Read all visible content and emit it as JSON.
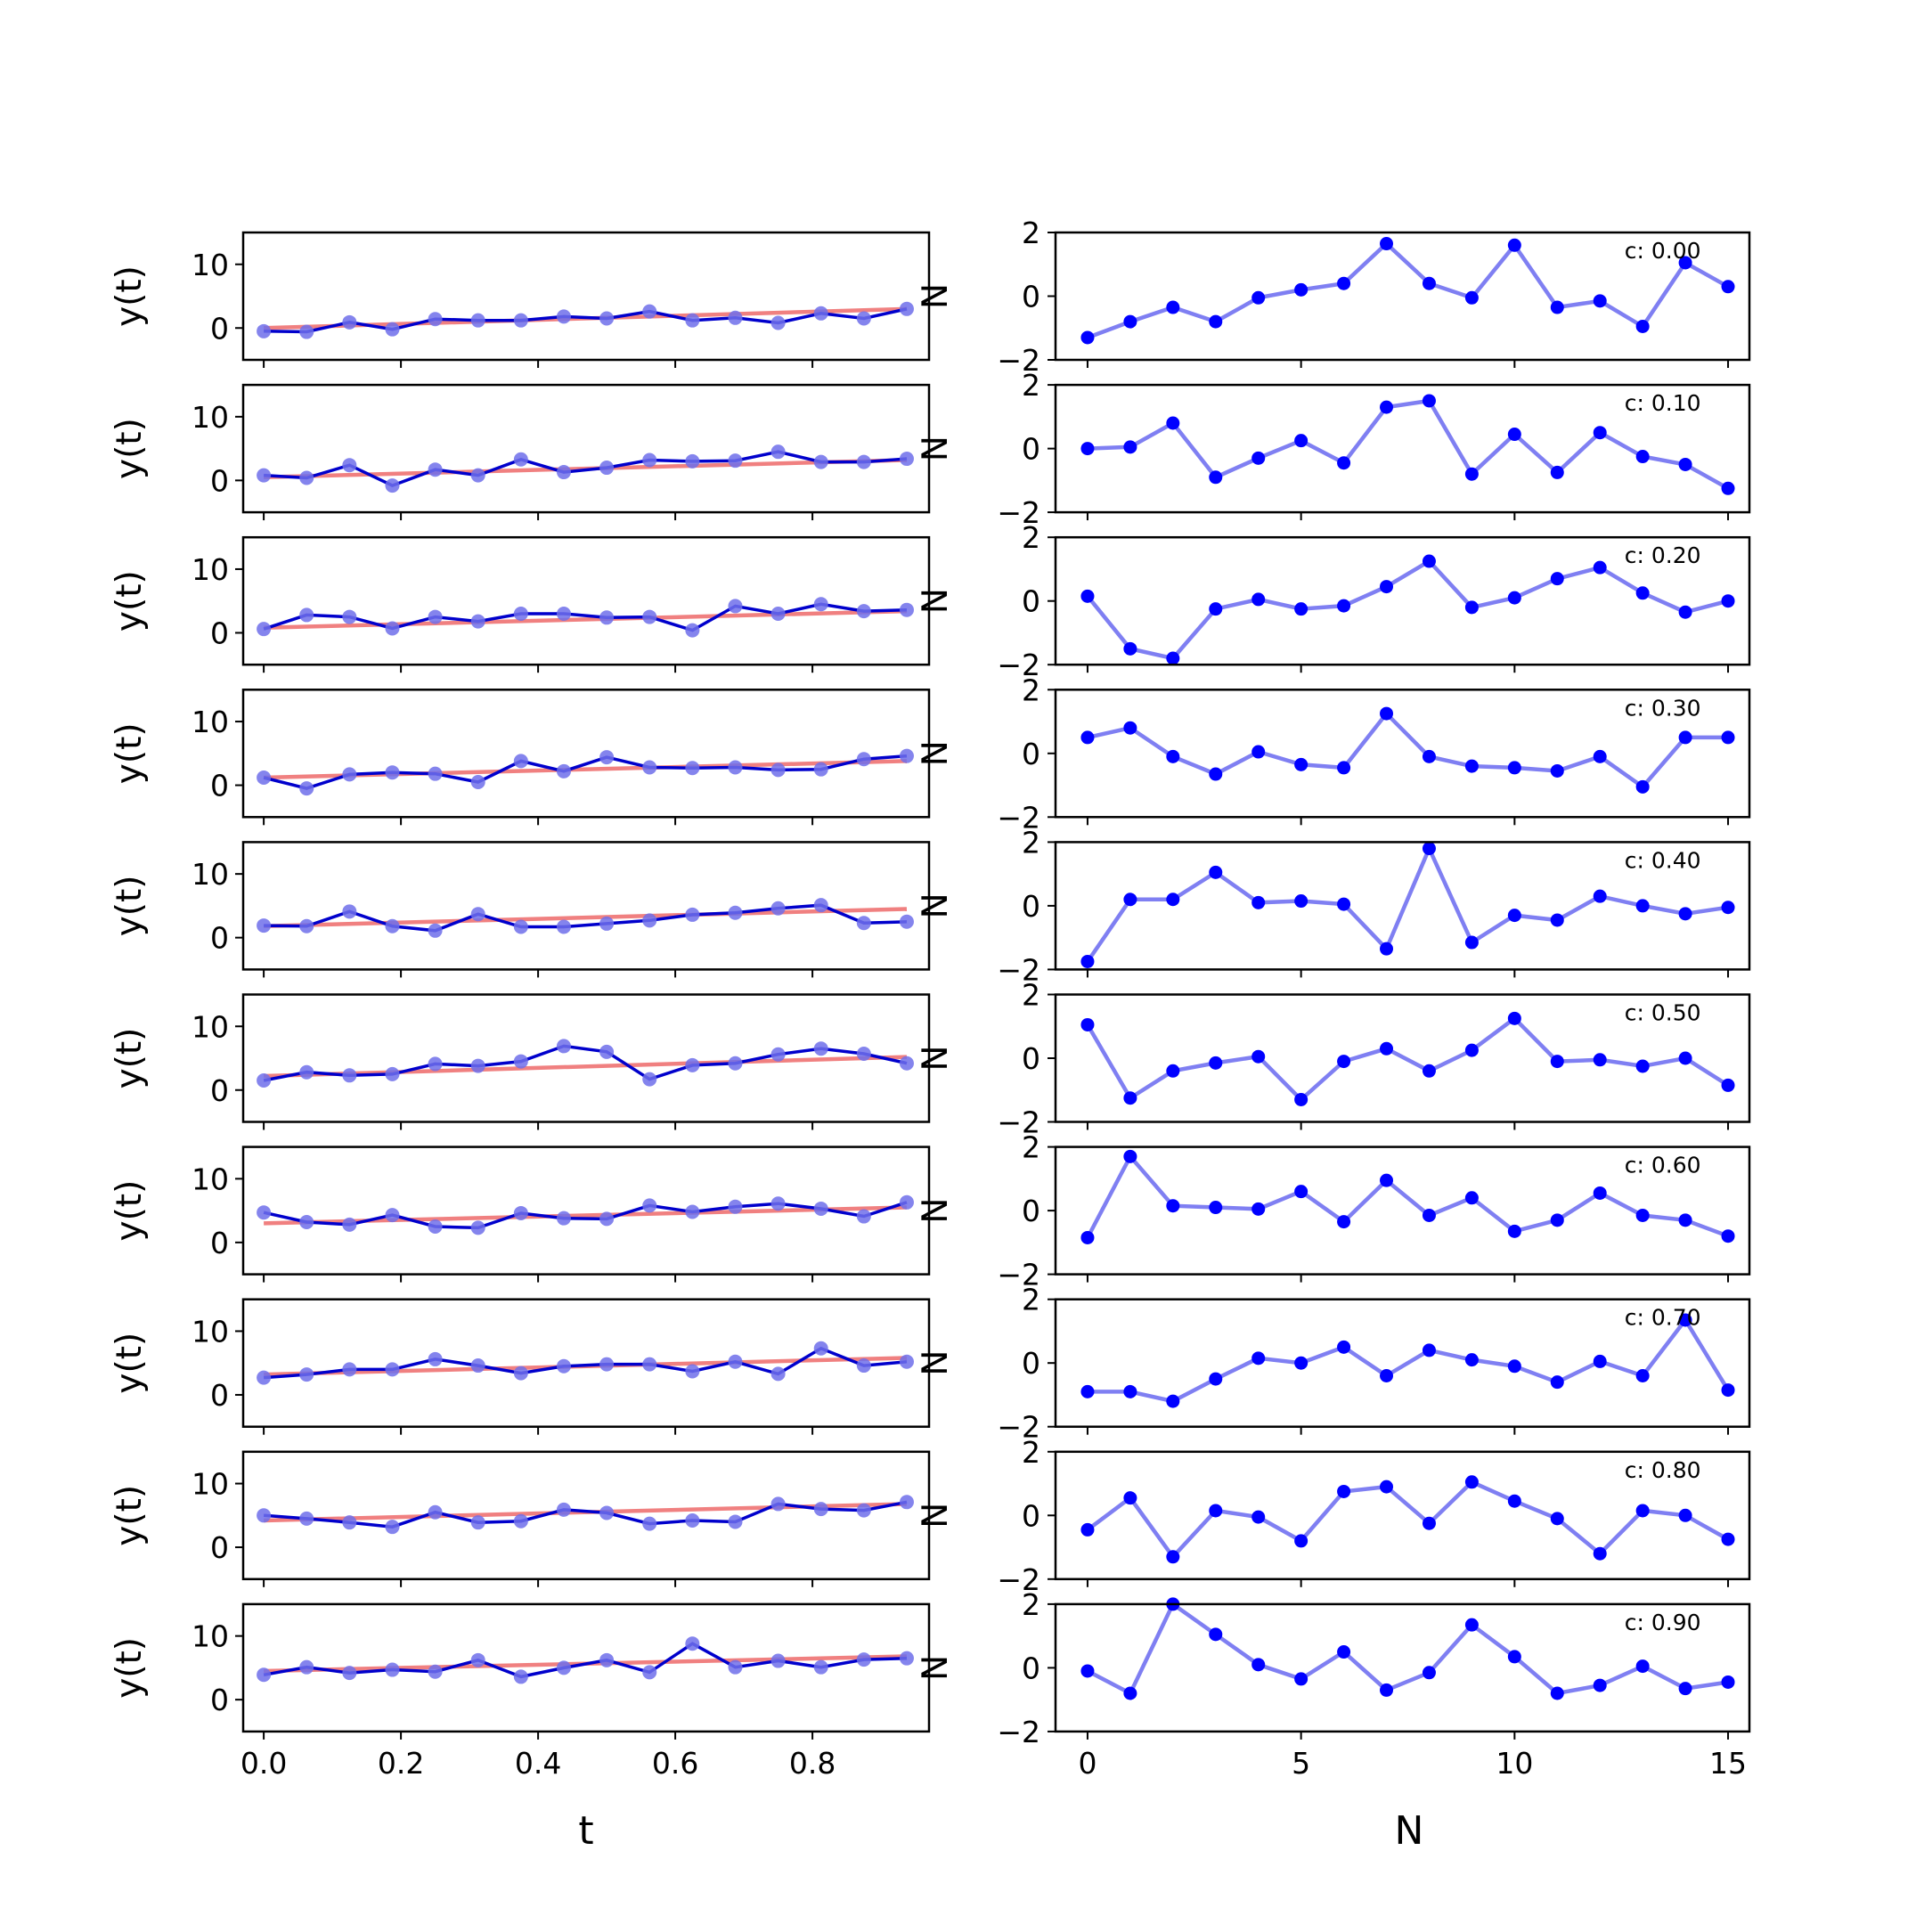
{
  "chart_data": {
    "type": "line",
    "rows": 10,
    "left": {
      "xlabel": "t",
      "ylabel": "y(t)",
      "xlim": [
        -0.03,
        0.97
      ],
      "ylim": [
        -5,
        15
      ],
      "xticks": [
        0.0,
        0.2,
        0.4,
        0.6,
        0.8
      ],
      "xtick_labels": [
        "0.0",
        "0.2",
        "0.4",
        "0.6",
        "0.8"
      ],
      "yticks": [
        0,
        10
      ],
      "ytick_labels": [
        "0",
        "10"
      ],
      "x": [
        0,
        0.0625,
        0.125,
        0.1875,
        0.25,
        0.3125,
        0.375,
        0.4375,
        0.5,
        0.5625,
        0.625,
        0.6875,
        0.75,
        0.8125,
        0.875,
        0.9375
      ],
      "panels": [
        {
          "trend": [
            0.0,
            3.0
          ],
          "y": [
            -0.5,
            -0.6,
            0.9,
            -0.2,
            1.4,
            1.2,
            1.2,
            1.8,
            1.5,
            2.6,
            1.2,
            1.6,
            0.8,
            2.3,
            1.5,
            3.0
          ]
        },
        {
          "trend": [
            0.5,
            3.2
          ],
          "y": [
            0.8,
            0.4,
            2.4,
            -0.8,
            1.7,
            0.8,
            3.3,
            1.3,
            2.0,
            3.2,
            3.0,
            3.1,
            4.5,
            2.9,
            2.9,
            3.4
          ]
        },
        {
          "trend": [
            0.8,
            3.4
          ],
          "y": [
            0.6,
            2.8,
            2.5,
            0.7,
            2.5,
            1.8,
            3.0,
            3.0,
            2.4,
            2.5,
            0.4,
            4.2,
            3.0,
            4.5,
            3.4,
            3.6
          ]
        },
        {
          "trend": [
            1.2,
            3.8
          ],
          "y": [
            1.2,
            -0.5,
            1.7,
            2.0,
            1.8,
            0.5,
            3.8,
            2.2,
            4.4,
            2.8,
            2.7,
            2.8,
            2.4,
            2.5,
            4.1,
            4.6
          ]
        },
        {
          "trend": [
            1.8,
            4.5
          ],
          "y": [
            1.9,
            1.8,
            4.1,
            1.8,
            1.1,
            3.7,
            1.7,
            1.7,
            2.2,
            2.7,
            3.6,
            3.9,
            4.6,
            5.1,
            2.3,
            2.5
          ]
        },
        {
          "trend": [
            2.2,
            5.2
          ],
          "y": [
            1.5,
            2.8,
            2.3,
            2.5,
            4.1,
            3.8,
            4.5,
            6.9,
            6.0,
            1.7,
            3.9,
            4.2,
            5.6,
            6.5,
            5.7,
            4.2
          ]
        },
        {
          "trend": [
            3.0,
            5.5
          ],
          "y": [
            4.7,
            3.2,
            2.8,
            4.3,
            2.5,
            2.3,
            4.6,
            3.8,
            3.7,
            5.8,
            4.8,
            5.6,
            6.1,
            5.3,
            4.1,
            6.3
          ]
        },
        {
          "trend": [
            3.2,
            5.8
          ],
          "y": [
            2.7,
            3.2,
            4.0,
            4.0,
            5.6,
            4.6,
            3.4,
            4.5,
            4.8,
            4.8,
            3.7,
            5.2,
            3.3,
            7.3,
            4.6,
            5.2
          ]
        },
        {
          "trend": [
            4.2,
            6.8
          ],
          "y": [
            5.0,
            4.5,
            3.9,
            3.2,
            5.5,
            3.9,
            4.1,
            5.9,
            5.4,
            3.7,
            4.2,
            4.0,
            6.8,
            6.0,
            5.8,
            7.1
          ]
        },
        {
          "trend": [
            4.5,
            6.8
          ],
          "y": [
            3.9,
            5.1,
            4.2,
            4.7,
            4.4,
            6.2,
            3.6,
            5.0,
            6.2,
            4.3,
            8.8,
            5.1,
            6.1,
            5.1,
            6.3,
            6.5
          ]
        }
      ]
    },
    "right": {
      "xlabel": "N",
      "ylabel": "N",
      "xlim": [
        -0.75,
        15.5
      ],
      "ylim": [
        -2,
        2
      ],
      "xticks": [
        0,
        5,
        10,
        15
      ],
      "xtick_labels": [
        "0",
        "5",
        "10",
        "15"
      ],
      "yticks": [
        -2,
        0,
        2
      ],
      "ytick_labels": [
        "−2",
        "0",
        "2"
      ],
      "x": [
        0,
        1,
        2,
        3,
        4,
        5,
        6,
        7,
        8,
        9,
        10,
        11,
        12,
        13,
        14,
        15
      ],
      "panels": [
        {
          "label": "c: 0.00",
          "y": [
            -1.3,
            -0.8,
            -0.35,
            -0.8,
            -0.05,
            0.2,
            0.4,
            1.65,
            0.4,
            -0.05,
            1.6,
            -0.35,
            -0.15,
            -0.95,
            1.05,
            0.3
          ]
        },
        {
          "label": "c: 0.10",
          "y": [
            0.0,
            0.05,
            0.8,
            -0.9,
            -0.3,
            0.25,
            -0.45,
            1.3,
            1.5,
            -0.8,
            0.45,
            -0.75,
            0.5,
            -0.25,
            -0.5,
            -1.25
          ]
        },
        {
          "label": "c: 0.20",
          "y": [
            0.15,
            -1.5,
            -1.8,
            -0.25,
            0.05,
            -0.25,
            -0.15,
            0.45,
            1.25,
            -0.2,
            0.1,
            0.7,
            1.05,
            0.25,
            -0.35,
            0.0
          ]
        },
        {
          "label": "c: 0.30",
          "y": [
            0.5,
            0.8,
            -0.1,
            -0.65,
            0.05,
            -0.35,
            -0.45,
            1.25,
            -0.1,
            -0.4,
            -0.45,
            -0.55,
            -0.1,
            -1.05,
            0.5,
            0.5
          ]
        },
        {
          "label": "c: 0.40",
          "y": [
            -1.75,
            0.2,
            0.2,
            1.05,
            0.1,
            0.15,
            0.05,
            -1.35,
            1.8,
            -1.15,
            -0.3,
            -0.45,
            0.3,
            0.0,
            -0.25,
            -0.05
          ]
        },
        {
          "label": "c: 0.50",
          "y": [
            1.05,
            -1.25,
            -0.4,
            -0.15,
            0.05,
            -1.3,
            -0.1,
            0.3,
            -0.4,
            0.25,
            1.25,
            -0.1,
            -0.05,
            -0.25,
            0.0,
            -0.85
          ]
        },
        {
          "label": "c: 0.60",
          "y": [
            -0.85,
            1.7,
            0.15,
            0.1,
            0.05,
            0.6,
            -0.35,
            0.95,
            -0.15,
            0.4,
            -0.65,
            -0.3,
            0.55,
            -0.15,
            -0.3,
            -0.8
          ]
        },
        {
          "label": "c: 0.70",
          "y": [
            -0.9,
            -0.9,
            -1.2,
            -0.5,
            0.15,
            0.0,
            0.5,
            -0.4,
            0.4,
            0.1,
            -0.1,
            -0.6,
            0.05,
            -0.4,
            1.35,
            -0.85
          ]
        },
        {
          "label": "c: 0.80",
          "y": [
            -0.45,
            0.55,
            -1.3,
            0.15,
            -0.05,
            -0.8,
            0.75,
            0.9,
            -0.25,
            1.05,
            0.45,
            -0.1,
            -1.2,
            0.15,
            0.0,
            -0.75
          ]
        },
        {
          "label": "c: 0.90",
          "y": [
            -0.1,
            -0.8,
            2.0,
            1.05,
            0.1,
            -0.35,
            0.5,
            -0.7,
            -0.15,
            1.35,
            0.35,
            -0.8,
            -0.55,
            0.05,
            -0.65,
            -0.45
          ]
        }
      ]
    },
    "colors": {
      "trend": "#f08080",
      "data_line": "#0000cc",
      "data_marker": "#6f6fea",
      "right_line": "#7f7ff2",
      "right_marker": "#0000ff"
    }
  }
}
